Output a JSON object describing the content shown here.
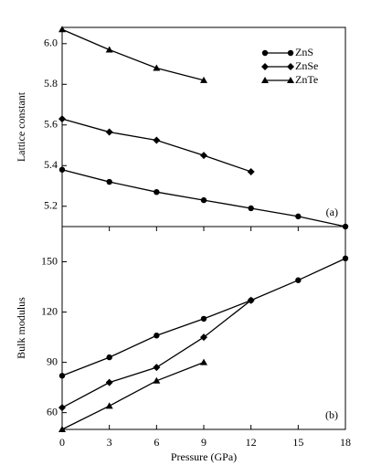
{
  "chart_data": [
    {
      "type": "line",
      "ylabel": "Lattice constant",
      "panel_label": "(a)",
      "x": [
        0,
        3,
        6,
        9,
        12,
        15,
        18
      ],
      "xlim": [
        0,
        18
      ],
      "ylim": [
        5.1,
        6.08
      ],
      "yticks": [
        {
          "value": 5.2,
          "label": "5.2"
        },
        {
          "value": 5.4,
          "label": "5.4"
        },
        {
          "value": 5.6,
          "label": "5.6"
        },
        {
          "value": 5.8,
          "label": "5.8"
        },
        {
          "value": 6.0,
          "label": "6.0"
        }
      ],
      "legend": "upper right",
      "series": [
        {
          "name": "ZnS",
          "color": "#000000",
          "marker": "circle",
          "values": [
            5.38,
            5.32,
            5.27,
            5.23,
            5.19,
            5.15,
            5.1
          ]
        },
        {
          "name": "ZnSe",
          "color": "#000000",
          "marker": "diamond",
          "values": [
            5.63,
            5.565,
            5.525,
            5.45,
            5.37,
            null,
            null
          ]
        },
        {
          "name": "ZnTe",
          "color": "#000000",
          "marker": "triangle",
          "values": [
            6.07,
            5.97,
            5.88,
            5.82,
            null,
            null,
            null
          ]
        }
      ]
    },
    {
      "type": "line",
      "ylabel": "Bulk modulus",
      "xlabel": "Pressure (GPa)",
      "panel_label": "(b)",
      "x": [
        0,
        3,
        6,
        9,
        12,
        15,
        18
      ],
      "xlim": [
        0,
        18
      ],
      "xticks": [
        0,
        3,
        6,
        9,
        12,
        15,
        18
      ],
      "ylim": [
        50,
        171
      ],
      "yticks": [
        60,
        90,
        120,
        150
      ],
      "series": [
        {
          "name": "ZnS",
          "color": "#000000",
          "marker": "circle",
          "values": [
            82,
            93,
            106,
            116,
            127,
            139,
            152
          ]
        },
        {
          "name": "ZnSe",
          "color": "#000000",
          "marker": "diamond",
          "values": [
            63,
            78,
            87,
            105,
            127,
            null,
            null
          ]
        },
        {
          "name": "ZnTe",
          "color": "#000000",
          "marker": "triangle",
          "values": [
            50,
            64,
            79,
            90,
            null,
            null,
            null
          ]
        }
      ]
    }
  ]
}
